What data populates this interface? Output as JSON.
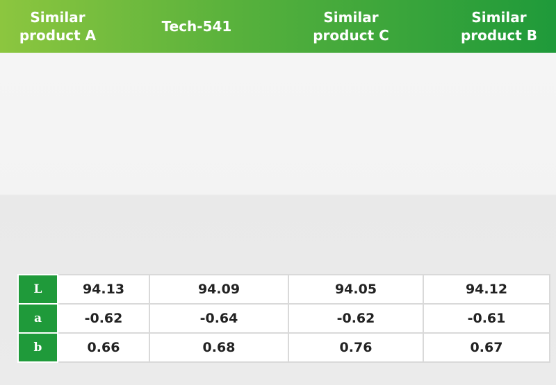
{
  "header": {
    "columns": [
      "Similar product A",
      "Tech-541",
      "Similar product C",
      "Similar product B"
    ]
  },
  "table": {
    "rows": [
      [
        "L",
        "94.13",
        "94.09",
        "94.05",
        "94.12"
      ],
      [
        "a",
        "-0.62",
        "-0.64",
        "-0.62",
        "-0.61"
      ],
      [
        "b",
        "0.66",
        "0.68",
        "0.76",
        "0.67"
      ]
    ]
  }
}
